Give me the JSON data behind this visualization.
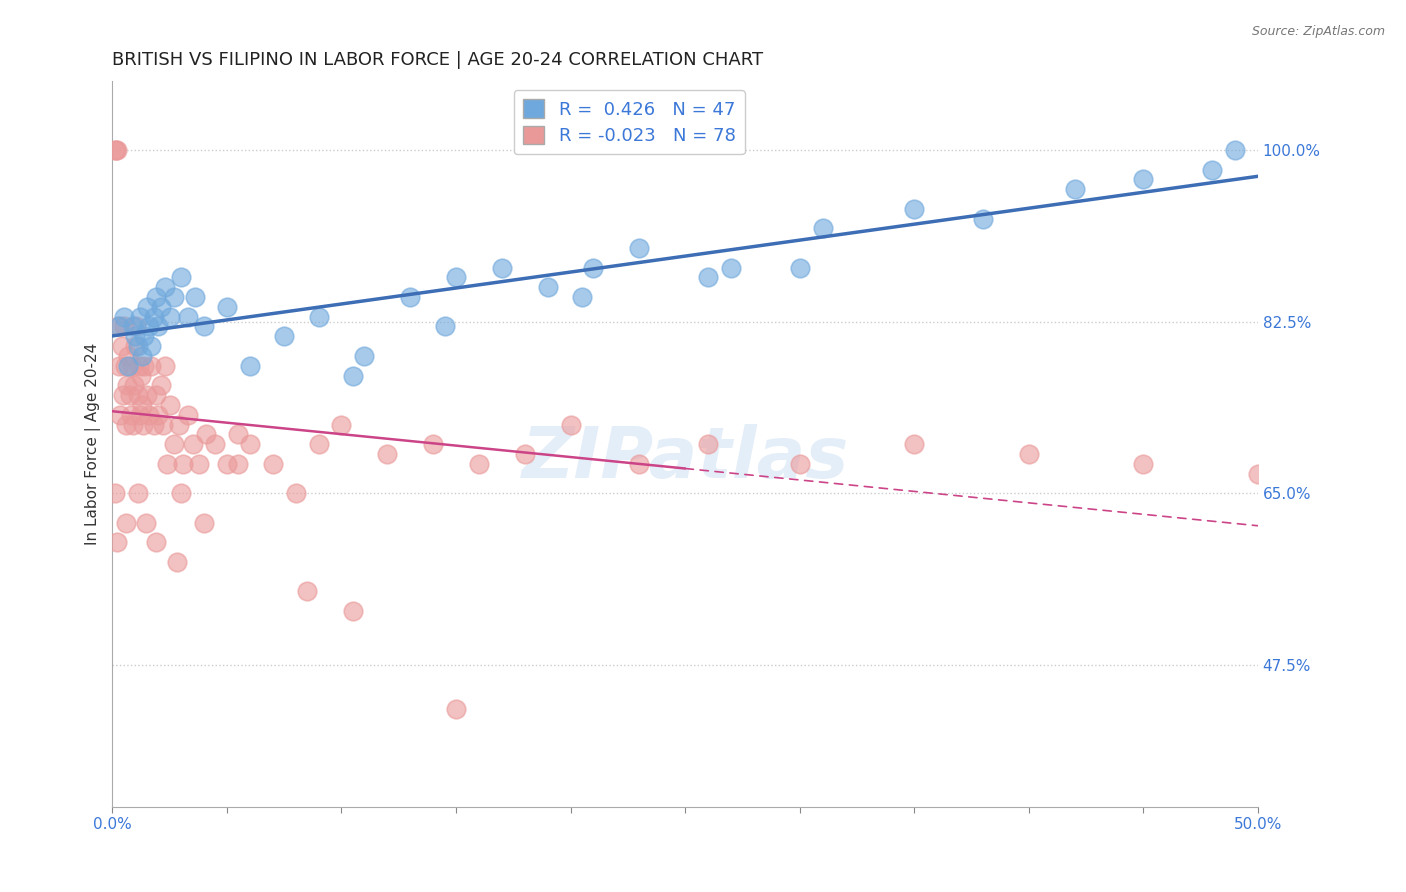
{
  "title": "BRITISH VS FILIPINO IN LABOR FORCE | AGE 20-24 CORRELATION CHART",
  "source": "Source: ZipAtlas.com",
  "ylabel": "In Labor Force | Age 20-24",
  "xlim": [
    0.0,
    50.0
  ],
  "ylim": [
    33.0,
    107.0
  ],
  "yticks": [
    47.5,
    65.0,
    82.5,
    100.0
  ],
  "ytick_labels": [
    "47.5%",
    "65.0%",
    "82.5%",
    "100.0%"
  ],
  "xticks": [
    0.0,
    5.0,
    10.0,
    15.0,
    20.0,
    25.0,
    30.0,
    35.0,
    40.0,
    45.0,
    50.0
  ],
  "british_color": "#6fa8dc",
  "filipino_color": "#ea9999",
  "british_line_color": "#3d6eb5",
  "filipino_line_color": "#cc4488",
  "british_R": 0.426,
  "british_N": 47,
  "filipino_R": -0.023,
  "filipino_N": 78,
  "legend_color": "#3c78d8",
  "british_x": [
    0.3,
    0.5,
    0.7,
    0.9,
    1.0,
    1.1,
    1.2,
    1.3,
    1.4,
    1.5,
    1.6,
    1.7,
    1.8,
    1.9,
    2.0,
    2.1,
    2.3,
    2.5,
    2.7,
    3.0,
    3.3,
    3.6,
    4.0,
    5.0,
    6.0,
    7.5,
    9.0,
    11.0,
    13.0,
    15.0,
    17.0,
    19.0,
    21.0,
    23.0,
    27.0,
    31.0,
    35.0,
    38.0,
    42.0,
    45.0,
    48.0,
    26.0,
    10.5,
    14.5,
    20.5,
    30.0,
    49.0
  ],
  "british_y": [
    82.0,
    83.0,
    78.0,
    82.0,
    81.0,
    80.0,
    83.0,
    79.0,
    81.0,
    84.0,
    82.0,
    80.0,
    83.0,
    85.0,
    82.0,
    84.0,
    86.0,
    83.0,
    85.0,
    87.0,
    83.0,
    85.0,
    82.0,
    84.0,
    78.0,
    81.0,
    83.0,
    79.0,
    85.0,
    87.0,
    88.0,
    86.0,
    88.0,
    90.0,
    88.0,
    92.0,
    94.0,
    93.0,
    96.0,
    97.0,
    98.0,
    87.0,
    77.0,
    82.0,
    85.0,
    88.0,
    100.0
  ],
  "filipino_x": [
    0.1,
    0.15,
    0.2,
    0.25,
    0.3,
    0.35,
    0.4,
    0.45,
    0.5,
    0.55,
    0.6,
    0.65,
    0.7,
    0.75,
    0.8,
    0.85,
    0.9,
    0.95,
    1.0,
    1.05,
    1.1,
    1.15,
    1.2,
    1.25,
    1.3,
    1.35,
    1.4,
    1.5,
    1.6,
    1.7,
    1.8,
    1.9,
    2.0,
    2.1,
    2.2,
    2.3,
    2.5,
    2.7,
    2.9,
    3.1,
    3.3,
    3.5,
    3.8,
    4.1,
    4.5,
    5.0,
    5.5,
    6.0,
    7.0,
    8.0,
    9.0,
    10.0,
    12.0,
    14.0,
    16.0,
    18.0,
    20.0,
    23.0,
    26.0,
    30.0,
    35.0,
    40.0,
    45.0,
    50.0,
    0.12,
    0.18,
    1.45,
    2.4,
    3.0,
    0.6,
    1.1,
    1.9,
    2.8,
    4.0,
    5.5,
    8.5,
    10.5,
    15.0
  ],
  "filipino_y": [
    100.0,
    100.0,
    100.0,
    82.0,
    78.0,
    73.0,
    80.0,
    75.0,
    82.0,
    78.0,
    72.0,
    76.0,
    79.0,
    75.0,
    73.0,
    78.0,
    72.0,
    76.0,
    80.0,
    82.0,
    75.0,
    78.0,
    73.0,
    77.0,
    74.0,
    72.0,
    78.0,
    75.0,
    73.0,
    78.0,
    72.0,
    75.0,
    73.0,
    76.0,
    72.0,
    78.0,
    74.0,
    70.0,
    72.0,
    68.0,
    73.0,
    70.0,
    68.0,
    71.0,
    70.0,
    68.0,
    71.0,
    70.0,
    68.0,
    65.0,
    70.0,
    72.0,
    69.0,
    70.0,
    68.0,
    69.0,
    72.0,
    68.0,
    70.0,
    68.0,
    70.0,
    69.0,
    68.0,
    67.0,
    65.0,
    60.0,
    62.0,
    68.0,
    65.0,
    62.0,
    65.0,
    60.0,
    58.0,
    62.0,
    68.0,
    55.0,
    53.0,
    43.0
  ],
  "watermark": "ZIPatlas",
  "background_color": "#ffffff",
  "grid_color": "#cccccc"
}
